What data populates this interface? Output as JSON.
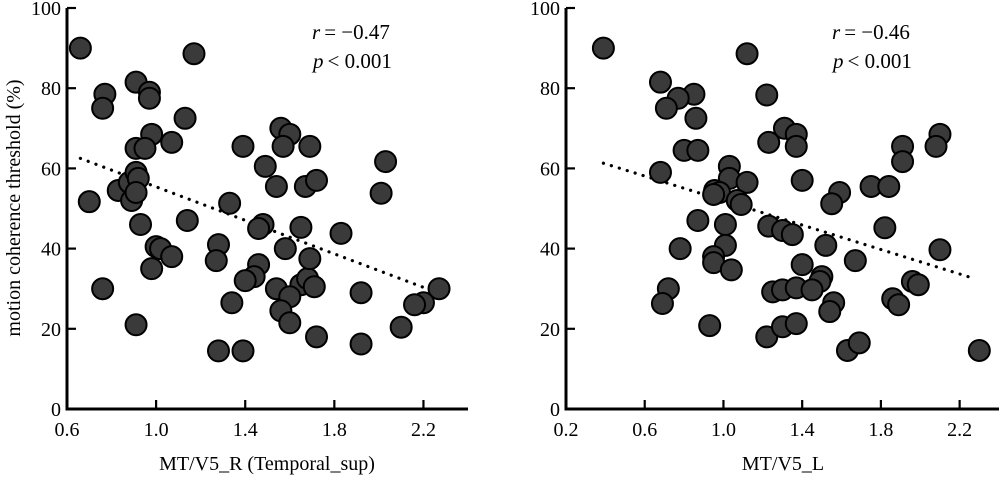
{
  "chart_data": [
    {
      "type": "scatter",
      "title": "",
      "xlabel": "MT/V5_R (Temporal_sup)",
      "ylabel": "motion coherence threshold (%)",
      "xlim": [
        0.6,
        2.4
      ],
      "ylim": [
        0,
        100
      ],
      "xticks": [
        "0.6",
        "1.0",
        "1.4",
        "1.8",
        "2.2"
      ],
      "xtick_values": [
        0.6,
        1.0,
        1.4,
        1.8,
        2.2
      ],
      "yticks": [
        "0",
        "20",
        "40",
        "60",
        "80",
        "100"
      ],
      "ytick_values": [
        0,
        20,
        40,
        60,
        80,
        100
      ],
      "grid": false,
      "stats": {
        "r_label": "r",
        "r_value": "= −0.47",
        "p_label": "p",
        "p_value": "< 0.001"
      },
      "trend": {
        "x": [
          0.66,
          2.24
        ],
        "y": [
          62.5,
          29.5
        ]
      },
      "points": [
        [
          0.66,
          90
        ],
        [
          1.17,
          88.6
        ],
        [
          0.91,
          81.5
        ],
        [
          0.97,
          79
        ],
        [
          0.97,
          77.5
        ],
        [
          0.77,
          78.5
        ],
        [
          0.76,
          75
        ],
        [
          1.13,
          72.5
        ],
        [
          0.98,
          68.5
        ],
        [
          1.07,
          66.5
        ],
        [
          0.91,
          65
        ],
        [
          0.95,
          65
        ],
        [
          0.7,
          51.7
        ],
        [
          0.83,
          54.5
        ],
        [
          0.89,
          52
        ],
        [
          0.88,
          56.5
        ],
        [
          0.91,
          59
        ],
        [
          0.92,
          57.5
        ],
        [
          0.91,
          54
        ],
        [
          0.93,
          46
        ],
        [
          1.14,
          47
        ],
        [
          1.0,
          40.5
        ],
        [
          1.02,
          40
        ],
        [
          1.07,
          38
        ],
        [
          0.98,
          35
        ],
        [
          0.76,
          30
        ],
        [
          0.91,
          21
        ],
        [
          1.56,
          70
        ],
        [
          1.6,
          68.5
        ],
        [
          1.39,
          65.5
        ],
        [
          1.57,
          65.5
        ],
        [
          1.69,
          65.5
        ],
        [
          1.49,
          60.5
        ],
        [
          1.54,
          55.5
        ],
        [
          1.67,
          55.5
        ],
        [
          1.72,
          57
        ],
        [
          1.33,
          51.3
        ],
        [
          1.48,
          46
        ],
        [
          1.46,
          45
        ],
        [
          1.65,
          45.3
        ],
        [
          1.28,
          41
        ],
        [
          1.58,
          40
        ],
        [
          1.27,
          37
        ],
        [
          1.46,
          36
        ],
        [
          1.44,
          33
        ],
        [
          1.4,
          32
        ],
        [
          1.34,
          26.5
        ],
        [
          1.54,
          30
        ],
        [
          1.65,
          31
        ],
        [
          1.68,
          32.5
        ],
        [
          1.71,
          30.5
        ],
        [
          1.6,
          28
        ],
        [
          1.56,
          24.5
        ],
        [
          1.6,
          21.5
        ],
        [
          1.72,
          18
        ],
        [
          1.28,
          14.5
        ],
        [
          1.39,
          14.5
        ],
        [
          1.69,
          37.5
        ],
        [
          2.03,
          61.7
        ],
        [
          2.01,
          53.8
        ],
        [
          1.83,
          43.8
        ],
        [
          1.92,
          29
        ],
        [
          2.27,
          30
        ],
        [
          2.2,
          26.5
        ],
        [
          2.16,
          26
        ],
        [
          2.1,
          20.4
        ],
        [
          1.92,
          16.2
        ]
      ]
    },
    {
      "type": "scatter",
      "title": "",
      "xlabel": "MT/V5_L",
      "ylabel": "",
      "xlim": [
        0.2,
        2.4
      ],
      "ylim": [
        0,
        100
      ],
      "xticks": [
        "0.2",
        "0.6",
        "1.0",
        "1.4",
        "1.8",
        "2.2"
      ],
      "xtick_values": [
        0.2,
        0.6,
        1.0,
        1.4,
        1.8,
        2.2
      ],
      "yticks": [
        "0",
        "20",
        "40",
        "60",
        "80",
        "100"
      ],
      "ytick_values": [
        0,
        20,
        40,
        60,
        80,
        100
      ],
      "grid": false,
      "stats": {
        "r_label": "r",
        "r_value": "= −0.46",
        "p_label": "p",
        "p_value": "< 0.001"
      },
      "trend": {
        "x": [
          0.39,
          2.27
        ],
        "y": [
          61.3,
          32.6
        ]
      },
      "points": [
        [
          0.39,
          90
        ],
        [
          1.12,
          88.6
        ],
        [
          0.68,
          81.5
        ],
        [
          0.85,
          78.5
        ],
        [
          0.77,
          77.5
        ],
        [
          0.71,
          75
        ],
        [
          0.86,
          72.5
        ],
        [
          0.8,
          64.5
        ],
        [
          0.87,
          64.5
        ],
        [
          0.68,
          59
        ],
        [
          1.03,
          60.5
        ],
        [
          1.03,
          57.5
        ],
        [
          1.12,
          56.5
        ],
        [
          0.955,
          54.5
        ],
        [
          0.98,
          54
        ],
        [
          0.95,
          53.5
        ],
        [
          1.07,
          52
        ],
        [
          1.09,
          51
        ],
        [
          0.87,
          47
        ],
        [
          1.01,
          46
        ],
        [
          1.23,
          45.6
        ],
        [
          1.3,
          44.5
        ],
        [
          1.35,
          43.5
        ],
        [
          1.01,
          40.8
        ],
        [
          0.78,
          40
        ],
        [
          0.95,
          38
        ],
        [
          0.95,
          36.5
        ],
        [
          1.04,
          34.7
        ],
        [
          0.72,
          30
        ],
        [
          0.69,
          26.3
        ],
        [
          0.93,
          20.8
        ],
        [
          1.31,
          70
        ],
        [
          1.37,
          68.5
        ],
        [
          1.37,
          65.5
        ],
        [
          1.23,
          66.5
        ],
        [
          1.4,
          57
        ],
        [
          1.59,
          54
        ],
        [
          1.55,
          51.2
        ],
        [
          1.22,
          78.3
        ],
        [
          1.52,
          40.8
        ],
        [
          1.67,
          37
        ],
        [
          1.4,
          36
        ],
        [
          1.5,
          33
        ],
        [
          1.49,
          31.8
        ],
        [
          1.25,
          29.2
        ],
        [
          1.3,
          29.7
        ],
        [
          1.37,
          30.2
        ],
        [
          1.45,
          29.7
        ],
        [
          1.56,
          26.5
        ],
        [
          1.54,
          24.3
        ],
        [
          1.22,
          18
        ],
        [
          1.3,
          20.5
        ],
        [
          1.37,
          21.3
        ],
        [
          1.63,
          14.6
        ],
        [
          1.69,
          16.5
        ],
        [
          2.1,
          68.5
        ],
        [
          2.08,
          65.5
        ],
        [
          1.91,
          65.5
        ],
        [
          1.91,
          61.7
        ],
        [
          1.75,
          55.5
        ],
        [
          1.84,
          55.5
        ],
        [
          1.82,
          45.2
        ],
        [
          2.1,
          39.7
        ],
        [
          1.96,
          31.8
        ],
        [
          1.99,
          31
        ],
        [
          1.86,
          27.5
        ],
        [
          1.89,
          26
        ],
        [
          2.3,
          14.6
        ]
      ]
    }
  ]
}
